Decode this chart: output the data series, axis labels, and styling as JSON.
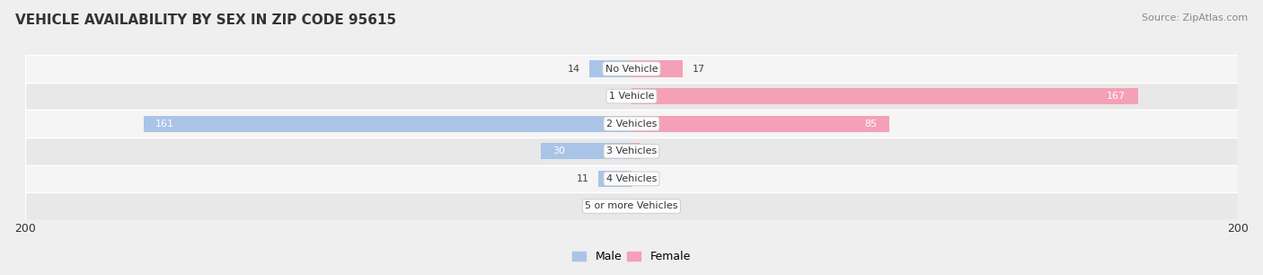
{
  "title": "VEHICLE AVAILABILITY BY SEX IN ZIP CODE 95615",
  "source": "Source: ZipAtlas.com",
  "categories": [
    "No Vehicle",
    "1 Vehicle",
    "2 Vehicles",
    "3 Vehicles",
    "4 Vehicles",
    "5 or more Vehicles"
  ],
  "male_values": [
    14,
    0,
    161,
    30,
    11,
    0
  ],
  "female_values": [
    17,
    167,
    85,
    3,
    0,
    0
  ],
  "male_color": "#aac4e8",
  "female_color": "#f4a0b8",
  "male_label": "Male",
  "female_label": "Female",
  "axis_max": 200,
  "bg_color": "#efefef",
  "row_bg_even": "#f5f5f5",
  "row_bg_odd": "#e8e8e8",
  "label_color_inside": "#ffffff",
  "label_color_outside": "#444444",
  "category_box_color": "#ffffff",
  "title_color": "#333333",
  "title_fontsize": 11,
  "source_fontsize": 8,
  "value_fontsize": 8,
  "category_fontsize": 8
}
